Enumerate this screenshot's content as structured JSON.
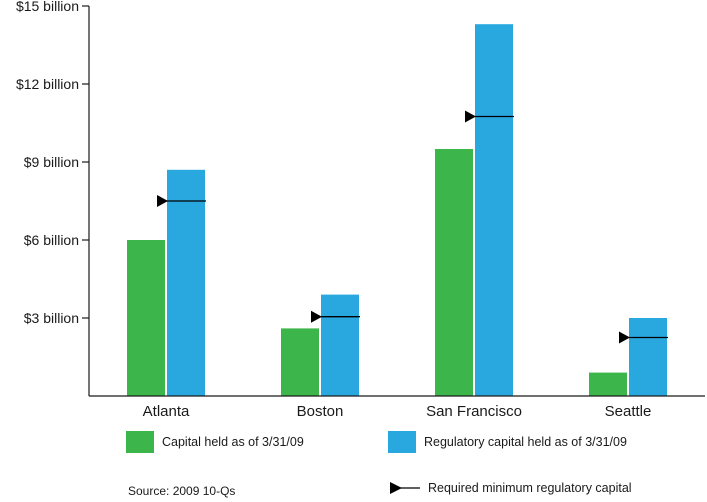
{
  "chart_data": {
    "type": "bar",
    "categories": [
      "Atlanta",
      "Boston",
      "San Francisco",
      "Seattle"
    ],
    "series": [
      {
        "name": "Capital held as of 3/31/09",
        "values": [
          6.0,
          2.6,
          9.5,
          0.9
        ],
        "color": "#3cb54a"
      },
      {
        "name": "Regulatory capital held as of 3/31/09",
        "values": [
          8.7,
          3.9,
          14.3,
          3.0
        ],
        "color": "#29a8e0"
      }
    ],
    "required_minimum": {
      "name": "Required minimum regulatory capital",
      "values": [
        7.5,
        3.05,
        10.75,
        2.25
      ]
    },
    "ylim": [
      0,
      15
    ],
    "yticks": [
      {
        "value": 3,
        "label": "$3 billion"
      },
      {
        "value": 6,
        "label": "$6 billion"
      },
      {
        "value": 9,
        "label": "$9 billion"
      },
      {
        "value": 12,
        "label": "$12 billion"
      },
      {
        "value": 15,
        "label": "$15 billion"
      }
    ],
    "source": "Source: 2009 10-Qs"
  }
}
